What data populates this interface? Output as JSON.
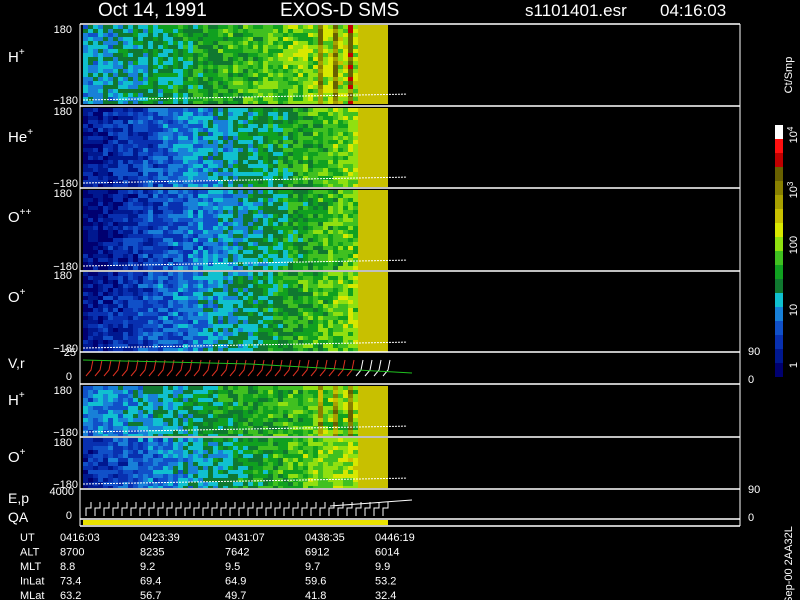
{
  "header": {
    "date": "Oct 14, 1991",
    "instrument": "EXOS-D SMS",
    "file": "s1101401.esr",
    "time": "04:16:03"
  },
  "panels": [
    {
      "label": "H",
      "sup": "+",
      "top": "180",
      "bottom": "−180"
    },
    {
      "label": "He",
      "sup": "+",
      "top": "180",
      "bottom": "−180"
    },
    {
      "label": "O",
      "sup": "++",
      "top": "180",
      "bottom": "−180"
    },
    {
      "label": "O",
      "sup": "+",
      "top": "180",
      "bottom": "−180"
    },
    {
      "label": "H",
      "sup": "+",
      "top": "180",
      "bottom": "−180"
    },
    {
      "label": "O",
      "sup": "+",
      "top": "180",
      "bottom": "−180"
    }
  ],
  "vr": {
    "label": "V,r",
    "top": "25",
    "mid": "0",
    "right_top": "90",
    "right_bottom": "0"
  },
  "ep": {
    "label": "E,p",
    "top": "4000",
    "mid": "0",
    "right_top": "90",
    "right_bottom": "0"
  },
  "qa": "QA",
  "colorbar": {
    "unit": "Ct/Smp",
    "ticks": [
      {
        "base": "10",
        "exp": "4"
      },
      {
        "base": "10",
        "exp": "3"
      },
      {
        "base": "100"
      },
      {
        "base": "10"
      },
      {
        "base": "1"
      }
    ]
  },
  "table": {
    "rows": [
      [
        "UT",
        "0416:03",
        "0423:39",
        "0431:07",
        "0438:35",
        "0446:19"
      ],
      [
        "ALT",
        "8700",
        "8235",
        "7642",
        "6912",
        "6014"
      ],
      [
        "MLT",
        "8.8",
        "9.2",
        "9.5",
        "9.7",
        "9.9"
      ],
      [
        "InLat",
        "73.4",
        "69.4",
        "64.9",
        "59.6",
        "53.2"
      ],
      [
        "MLat",
        "63.2",
        "56.7",
        "49.7",
        "41.8",
        "32.4"
      ]
    ]
  },
  "footer": "Sep-00  2AA32L"
}
